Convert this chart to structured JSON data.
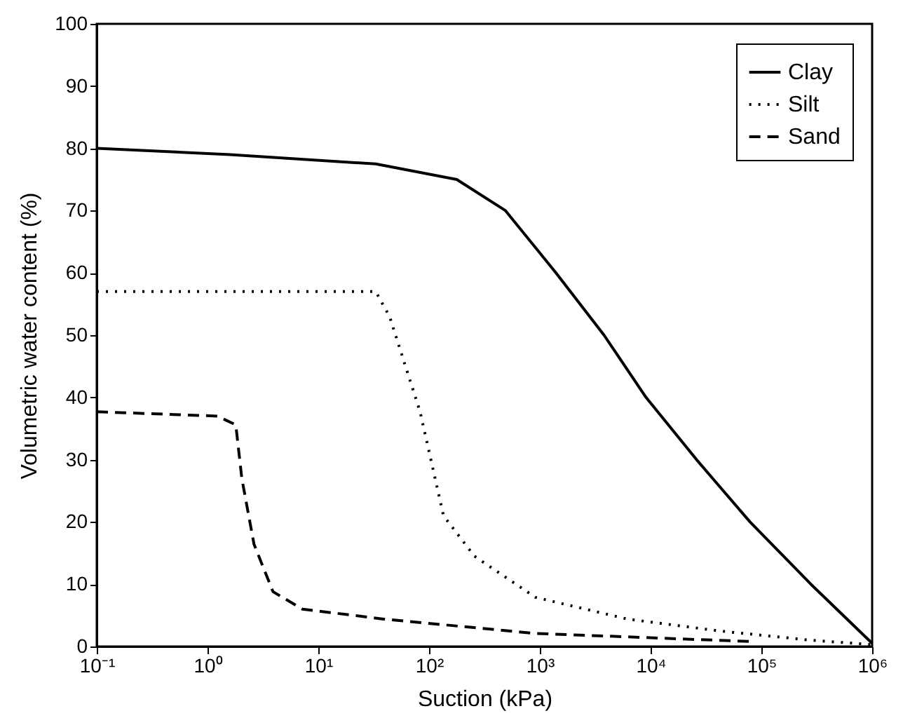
{
  "chart_data": {
    "type": "line",
    "xlabel": "Suction (kPa)",
    "ylabel": "Volumetric water content (%)",
    "log": "x",
    "grid": false,
    "legend": "top right",
    "xlim": [
      0.1,
      1000000
    ],
    "xticks": [
      {
        "value": 0.1,
        "label": "10⁻¹"
      },
      {
        "value": 1,
        "label": "10⁰"
      },
      {
        "value": 10,
        "label": "10¹"
      },
      {
        "value": 100,
        "label": "10²"
      },
      {
        "value": 1000,
        "label": "10³"
      },
      {
        "value": 10000,
        "label": "10⁴"
      },
      {
        "value": 100000,
        "label": "10⁵"
      },
      {
        "value": 1000000,
        "label": "10⁶"
      }
    ],
    "ylim": [
      0,
      100
    ],
    "yticks": [
      0,
      10,
      20,
      30,
      40,
      50,
      60,
      70,
      80,
      90,
      100
    ],
    "series": [
      {
        "name": "Clay",
        "color": "#000000",
        "line_style": "solid",
        "x": [
          0.1,
          1.6,
          33,
          178,
          490,
          1400,
          3800,
          9100,
          26000,
          79000,
          280000,
          1000000
        ],
        "values": [
          80,
          79,
          77.5,
          75,
          70,
          60,
          50,
          40,
          30,
          20,
          10,
          0.5
        ]
      },
      {
        "name": "Silt",
        "color": "#000000",
        "line_style": "dotted",
        "x": [
          0.1,
          33,
          44,
          68,
          83,
          135,
          257,
          912,
          6200,
          41700,
          282000,
          1000000
        ],
        "values": [
          57,
          57,
          53,
          42.5,
          37.7,
          21,
          14.5,
          7.9,
          4.4,
          2.5,
          1,
          0.3
        ]
      },
      {
        "name": "Sand",
        "color": "#000000",
        "line_style": "dashed",
        "x": [
          0.1,
          1.23,
          1.8,
          2.04,
          2.63,
          3.9,
          7.2,
          39,
          912,
          79400
        ],
        "values": [
          37.7,
          37,
          35.6,
          27,
          16.4,
          8.8,
          6,
          4.4,
          2.1,
          0.8
        ]
      }
    ]
  }
}
